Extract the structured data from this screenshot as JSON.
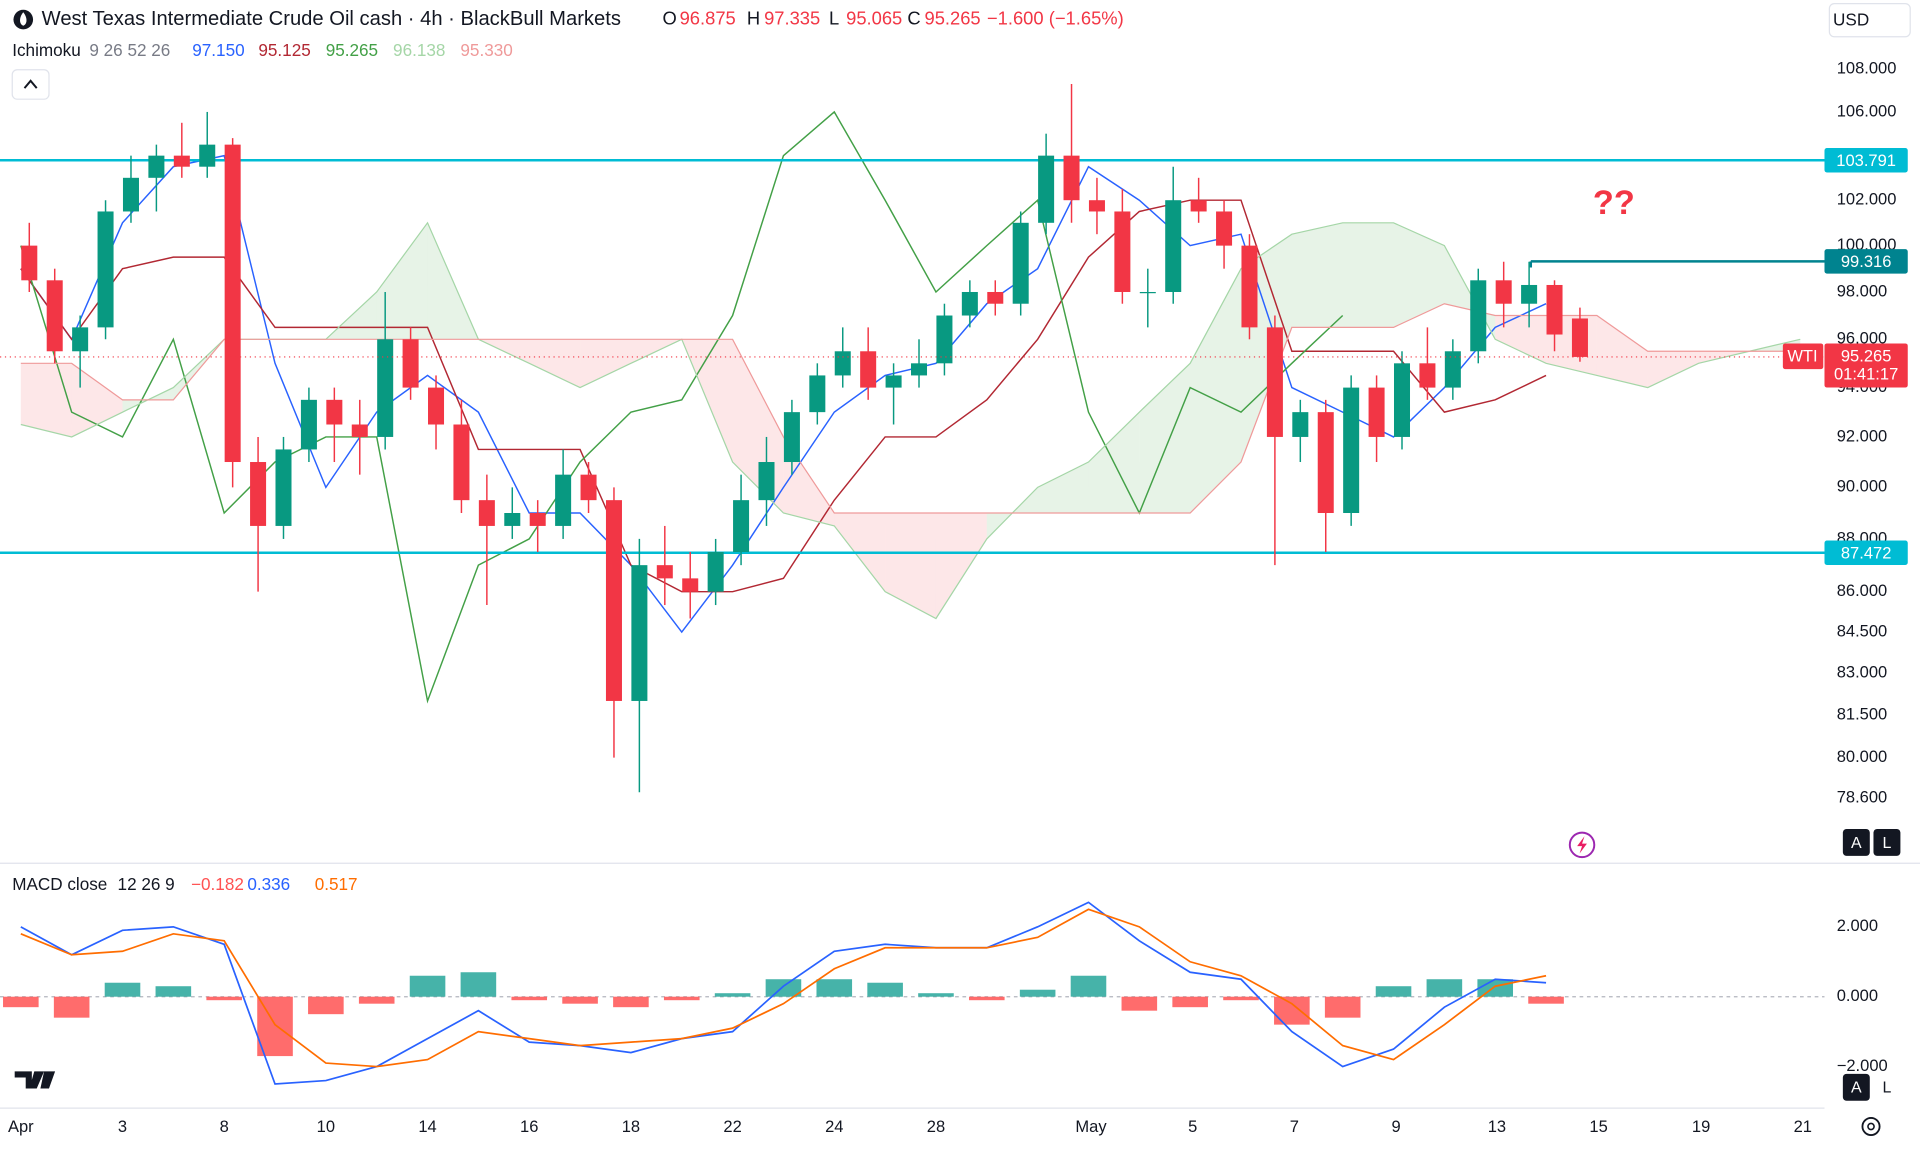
{
  "chart_data": {
    "type": "candlestick",
    "title": "West Texas Intermediate Crude Oil cash · 4h · BlackBull Markets",
    "currency": "USD",
    "ohlc_labels": [
      {
        "key": "O",
        "value": 96.875,
        "label": "96.875"
      },
      {
        "key": "H",
        "value": 97.335,
        "label": "97.335"
      },
      {
        "key": "L",
        "value": 95.065,
        "label": "95.065"
      },
      {
        "key": "C",
        "value": 95.265,
        "label": "95.265"
      }
    ],
    "change": {
      "value": -1.6,
      "label": "−1.600"
    },
    "change_pct": {
      "value": -1.65,
      "label": "(−1.65%)"
    },
    "log": true,
    "up_color": "#089981",
    "down_color": "#f23645",
    "xlim": [
      -2.457,
      212.86
    ],
    "xticks": [
      {
        "value": 0,
        "label": "Apr"
      },
      {
        "value": 12,
        "label": "3"
      },
      {
        "value": 24,
        "label": "8"
      },
      {
        "value": 36,
        "label": "10"
      },
      {
        "value": 48,
        "label": "14"
      },
      {
        "value": 60,
        "label": "16"
      },
      {
        "value": 72,
        "label": "18"
      },
      {
        "value": 84,
        "label": "22"
      },
      {
        "value": 96,
        "label": "24"
      },
      {
        "value": 108,
        "label": "28"
      },
      {
        "value": 126.3,
        "label": "May"
      },
      {
        "value": 138.3,
        "label": "5"
      },
      {
        "value": 150.3,
        "label": "7"
      },
      {
        "value": 162.3,
        "label": "9"
      },
      {
        "value": 174.2,
        "label": "13"
      },
      {
        "value": 186.2,
        "label": "15"
      },
      {
        "value": 198.3,
        "label": "19"
      },
      {
        "value": 210.3,
        "label": "21"
      }
    ],
    "ylim": [
      76.4,
      111.3
    ],
    "yticks": [
      {
        "value": 108,
        "label": "108.000"
      },
      {
        "value": 106,
        "label": "106.000"
      },
      {
        "value": 102,
        "label": "102.000"
      },
      {
        "value": 100,
        "label": "100.000"
      },
      {
        "value": 98,
        "label": "98.000"
      },
      {
        "value": 96,
        "label": "96.000"
      },
      {
        "value": 94,
        "label": "94.000"
      },
      {
        "value": 92,
        "label": "92.000"
      },
      {
        "value": 90,
        "label": "90.000"
      },
      {
        "value": 88,
        "label": "88.000"
      },
      {
        "value": 86,
        "label": "86.000"
      },
      {
        "value": 84.5,
        "label": "84.500"
      },
      {
        "value": 83,
        "label": "83.000"
      },
      {
        "value": 81.5,
        "label": "81.500"
      },
      {
        "value": 80,
        "label": "80.000"
      },
      {
        "value": 78.6,
        "label": "78.600"
      }
    ],
    "x": [
      1,
      4,
      7,
      10,
      13,
      16,
      19,
      22,
      25,
      28,
      31,
      34,
      37,
      40,
      43,
      46,
      49,
      52,
      55,
      58,
      61,
      64,
      67,
      70,
      73,
      76,
      79,
      82,
      85,
      88,
      91,
      94,
      97,
      100,
      103,
      106,
      109,
      112,
      115,
      118,
      121,
      124,
      127,
      130,
      133,
      136,
      139,
      142,
      145,
      148,
      151,
      154,
      157,
      160,
      163,
      166,
      169,
      172,
      175,
      178,
      181,
      184
    ],
    "open": [
      100,
      98.5,
      95.5,
      96.5,
      101.5,
      103,
      104,
      103.5,
      104.5,
      91,
      88.5,
      91.5,
      93.5,
      92.5,
      92,
      96,
      94,
      92.5,
      89.5,
      88.5,
      89,
      88.5,
      90.5,
      89.5,
      82,
      87,
      86.5,
      86,
      87.5,
      89.5,
      91,
      93,
      94.5,
      95.5,
      94,
      94.5,
      95,
      97,
      98,
      97.5,
      101,
      104,
      102,
      101.5,
      98,
      98,
      102,
      101.5,
      100,
      96.5,
      92,
      93,
      89,
      94,
      92,
      95,
      94,
      95.5,
      98.5,
      97.5,
      98.3,
      96.875
    ],
    "high": [
      101,
      99,
      97,
      102,
      104,
      104.5,
      105.5,
      106,
      104.8,
      92,
      92,
      94,
      94,
      93.5,
      98,
      96.5,
      94.5,
      93.5,
      90.5,
      90,
      89.5,
      91.5,
      91,
      90,
      88,
      88.5,
      87.5,
      88,
      90.5,
      92,
      93.5,
      95,
      96.5,
      96.5,
      95,
      96,
      97.5,
      98.5,
      98.5,
      101.5,
      105,
      107.3,
      103,
      102.5,
      99,
      103.5,
      103,
      102,
      100.5,
      97,
      93.5,
      93.5,
      94.5,
      94.5,
      95.5,
      96.5,
      96,
      99,
      99.3,
      99.3,
      98.5,
      97.335
    ],
    "low": [
      98,
      95,
      94,
      96,
      101,
      101.5,
      103,
      103,
      90,
      86,
      88,
      91,
      91,
      90.5,
      91.5,
      93.5,
      91.5,
      89,
      85.5,
      88,
      87.5,
      88,
      89,
      80,
      78.8,
      85.5,
      85,
      85.5,
      87,
      88.5,
      90.5,
      92.5,
      94,
      93.5,
      92.5,
      94,
      94.5,
      96.5,
      97,
      97,
      100.5,
      101,
      100.5,
      97.5,
      96.5,
      97.5,
      101,
      99,
      96,
      87,
      91,
      87.5,
      88.5,
      91,
      91.5,
      93.5,
      93.5,
      95,
      96.5,
      96.5,
      95.5,
      95.065
    ],
    "close": [
      98.5,
      95.5,
      96.5,
      101.5,
      103,
      104,
      103.5,
      104.5,
      91,
      88.5,
      91.5,
      93.5,
      92.5,
      92,
      96,
      94,
      92.5,
      89.5,
      88.5,
      89,
      88.5,
      90.5,
      89.5,
      82,
      87,
      86.5,
      86,
      87.5,
      89.5,
      91,
      93,
      94.5,
      95.5,
      94,
      94.5,
      95,
      97,
      98,
      97.5,
      101,
      104,
      102,
      101.5,
      98,
      98,
      102,
      101.5,
      100,
      96.5,
      92,
      93,
      89,
      94,
      92,
      95,
      94,
      95.5,
      98.5,
      97.5,
      98.3,
      96.2,
      95.265
    ],
    "ichimoku": {
      "label": "Ichimoku",
      "params": "9 26 52 26",
      "series": [
        {
          "color": "#2962ff",
          "last": {
            "value": 97.15,
            "label": "97.150"
          },
          "x": [
            0,
            6,
            12,
            18,
            24,
            30,
            36,
            42,
            48,
            54,
            60,
            66,
            72,
            78,
            84,
            90,
            96,
            102,
            108,
            114,
            120,
            126,
            132,
            138,
            144,
            150,
            156,
            162,
            168,
            174,
            180
          ],
          "values": [
            99,
            96,
            101,
            103.5,
            104,
            95,
            90,
            93,
            94.5,
            93,
            89,
            89,
            87,
            84.5,
            87,
            90,
            93,
            94.5,
            95,
            97.5,
            99,
            103.5,
            102,
            100,
            100.5,
            94,
            93,
            92,
            94,
            96.5,
            97.5
          ]
        },
        {
          "color": "#b22833",
          "last": {
            "value": 95.125,
            "label": "95.125"
          },
          "x": [
            0,
            6,
            12,
            18,
            24,
            30,
            36,
            42,
            48,
            54,
            60,
            66,
            72,
            78,
            84,
            90,
            96,
            102,
            108,
            114,
            120,
            126,
            132,
            138,
            144,
            150,
            156,
            162,
            168,
            174,
            180
          ],
          "values": [
            99,
            96,
            99,
            99.5,
            99.5,
            96.5,
            96.5,
            96.5,
            96.5,
            91.5,
            91.5,
            91.5,
            87,
            86,
            86,
            86.5,
            89.5,
            92,
            92,
            93.5,
            96,
            99.5,
            101.5,
            102,
            102,
            95.5,
            95.5,
            95.5,
            93,
            93.5,
            94.5
          ]
        },
        {
          "color": "#43a047",
          "last": {
            "value": 95.265,
            "label": "95.265"
          },
          "x": [
            0,
            6,
            12,
            18,
            24,
            30,
            36,
            42,
            48,
            54,
            60,
            66,
            72,
            78,
            84,
            90,
            96,
            102,
            108,
            114,
            120,
            126,
            132,
            138,
            144,
            150,
            156
          ],
          "values": [
            100,
            93,
            92,
            96,
            89,
            91,
            92,
            92,
            82,
            87,
            88,
            91,
            93,
            93.5,
            97,
            104,
            106,
            102,
            98,
            100,
            102,
            93,
            89,
            94,
            93,
            95,
            97
          ]
        },
        {
          "color": "#a5d6a7",
          "last": {
            "value": 96.138,
            "label": "96.138"
          },
          "x": [
            0,
            6,
            12,
            18,
            24,
            30,
            36,
            42,
            48,
            54,
            60,
            66,
            72,
            78,
            84,
            90,
            96,
            102,
            108,
            114,
            120,
            126,
            132,
            138,
            144,
            150,
            156,
            162,
            168,
            174,
            180,
            186,
            192,
            198,
            204,
            210
          ],
          "values": [
            92.5,
            92,
            93,
            94,
            96,
            96,
            96,
            98,
            101,
            96,
            95,
            94,
            95,
            96,
            91,
            89,
            88.5,
            86,
            85,
            88,
            90,
            91,
            93,
            95,
            99,
            100.5,
            101,
            101,
            100,
            96,
            95,
            94.5,
            94,
            95,
            95.5,
            96
          ]
        },
        {
          "color": "#ef9a9a",
          "last": {
            "value": 95.33,
            "label": "95.330"
          },
          "x": [
            0,
            6,
            12,
            18,
            24,
            30,
            36,
            42,
            48,
            54,
            60,
            66,
            72,
            78,
            84,
            90,
            96,
            102,
            108,
            114,
            120,
            126,
            132,
            138,
            144,
            150,
            156,
            162,
            168,
            174,
            180,
            186,
            192,
            198,
            204,
            210
          ],
          "values": [
            95,
            95,
            93.5,
            93.5,
            96,
            96,
            96,
            96,
            96,
            96,
            96,
            96,
            96,
            96,
            96,
            92,
            89,
            89,
            89,
            89,
            89,
            89,
            89,
            89,
            91,
            96.5,
            96.5,
            96.5,
            97.5,
            97,
            97,
            97,
            95.5,
            95.5,
            95.5,
            95.5
          ]
        }
      ]
    },
    "cloud_colors": {
      "up": "rgba(67,160,71,0.13)",
      "down": "rgba(242,54,69,0.12)"
    },
    "levels": [
      {
        "value": 103.791,
        "label": "103.791",
        "color": "#00bcd4"
      },
      {
        "value": 87.472,
        "label": "87.472",
        "color": "#00bcd4"
      },
      {
        "value": 99.316,
        "label": "99.316",
        "color": "#00838f",
        "x_start": 178.2
      }
    ],
    "current_price": {
      "value": 95.265,
      "label": "95.265",
      "symbol": "WTI",
      "countdown": "01:41:17",
      "color": "#f23645"
    },
    "annotations": [
      {
        "text": "??",
        "x": 188,
        "y": 101.8,
        "color": "#f23645"
      }
    ],
    "macd": {
      "label": "MACD",
      "source": "close",
      "params": "12 26 9",
      "ylim": [
        -3.19,
        3.82
      ],
      "yticks": [
        {
          "value": 2,
          "label": "2.000"
        },
        {
          "value": 0,
          "label": "0.000"
        },
        {
          "value": -2,
          "label": "−2.000"
        }
      ],
      "x": [
        0,
        6,
        12,
        18,
        24,
        30,
        36,
        42,
        48,
        54,
        60,
        66,
        72,
        78,
        84,
        90,
        96,
        102,
        108,
        114,
        120,
        126,
        132,
        138,
        144,
        150,
        156,
        162,
        168,
        174,
        180
      ],
      "histogram": {
        "up_color": "#26a69a",
        "down_color": "#ff5252",
        "last": {
          "value": -0.182,
          "label": "−0.182"
        },
        "values": [
          -0.3,
          -0.6,
          0.4,
          0.3,
          -0.1,
          -1.7,
          -0.5,
          -0.2,
          0.6,
          0.7,
          -0.1,
          -0.2,
          -0.3,
          -0.1,
          0.1,
          0.5,
          0.5,
          0.4,
          0.1,
          -0.1,
          0.2,
          0.6,
          -0.4,
          -0.3,
          -0.1,
          -0.8,
          -0.6,
          0.3,
          0.5,
          0.5,
          -0.2
        ]
      },
      "series": [
        {
          "color": "#2962ff",
          "last": {
            "value": 0.336,
            "label": "0.336"
          },
          "values": [
            2,
            1.2,
            1.9,
            2,
            1.5,
            -2.5,
            -2.4,
            -2,
            -1.2,
            -0.4,
            -1.3,
            -1.4,
            -1.6,
            -1.2,
            -1,
            0.3,
            1.3,
            1.5,
            1.4,
            1.4,
            2,
            2.7,
            1.6,
            0.7,
            0.5,
            -1,
            -2,
            -1.5,
            -0.3,
            0.5,
            0.4
          ]
        },
        {
          "color": "#ff6d00",
          "last": {
            "value": 0.517,
            "label": "0.517"
          },
          "values": [
            1.8,
            1.2,
            1.3,
            1.8,
            1.6,
            -0.8,
            -1.9,
            -2,
            -1.8,
            -1,
            -1.2,
            -1.4,
            -1.3,
            -1.2,
            -0.9,
            -0.2,
            0.8,
            1.4,
            1.4,
            1.4,
            1.7,
            2.5,
            2,
            1,
            0.6,
            -0.2,
            -1.4,
            -1.8,
            -0.8,
            0.3,
            0.6
          ]
        }
      ]
    }
  }
}
